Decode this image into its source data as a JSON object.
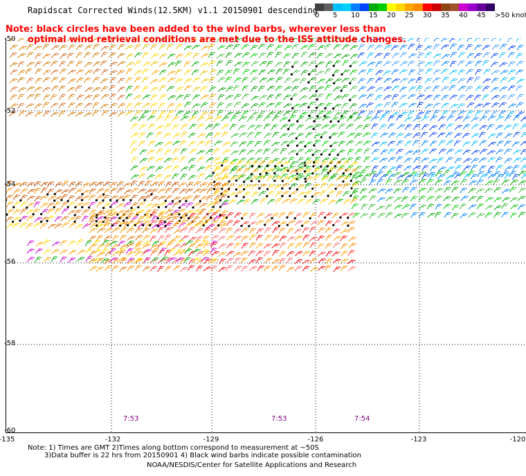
{
  "title": "Rapidscat Corrected Winds(12.5KM) v1.1 20150901 descending",
  "note_line1": "Note: black circles have been added to the wind barbs, wherever less than",
  "note_line2": "optimal wind retrieval conditions are met due to the ISS attitude changes.",
  "legend": {
    "colors": [
      "#404040",
      "#606060",
      "#00bfff",
      "#00d0ff",
      "#0080ff",
      "#0040ff",
      "#00aa00",
      "#00cc00",
      "#ffff00",
      "#ffd700",
      "#ffa500",
      "#ff8c00",
      "#ff0000",
      "#cc0000",
      "#8b4513",
      "#a0522d",
      "#cc00cc",
      "#9900cc",
      "#660099",
      "#330066"
    ],
    "labels": [
      "0",
      "5",
      "10",
      "15",
      "20",
      "25",
      "30",
      "35",
      "40",
      "45",
      ">50 knots"
    ]
  },
  "y_axis_labels": [
    "-50",
    "-52",
    "-54",
    "-56",
    "-58",
    "-60"
  ],
  "x_axis_labels": [
    "-135",
    "-132",
    "-129",
    "-126",
    "-123",
    "-120"
  ],
  "times": [
    "7:53",
    "7:53",
    "7:54"
  ],
  "footer_line1": "Note: 1) Times are GMT 2)Times along bottom correspond to measurement at ~50S",
  "footer_line2": "3)Data buffer is 22 hrs from 20150901 4) Black wind barbs indicate possible contamination",
  "footer_line3": "NOAA/NESDIS/Center for Satellite Applications and Research"
}
